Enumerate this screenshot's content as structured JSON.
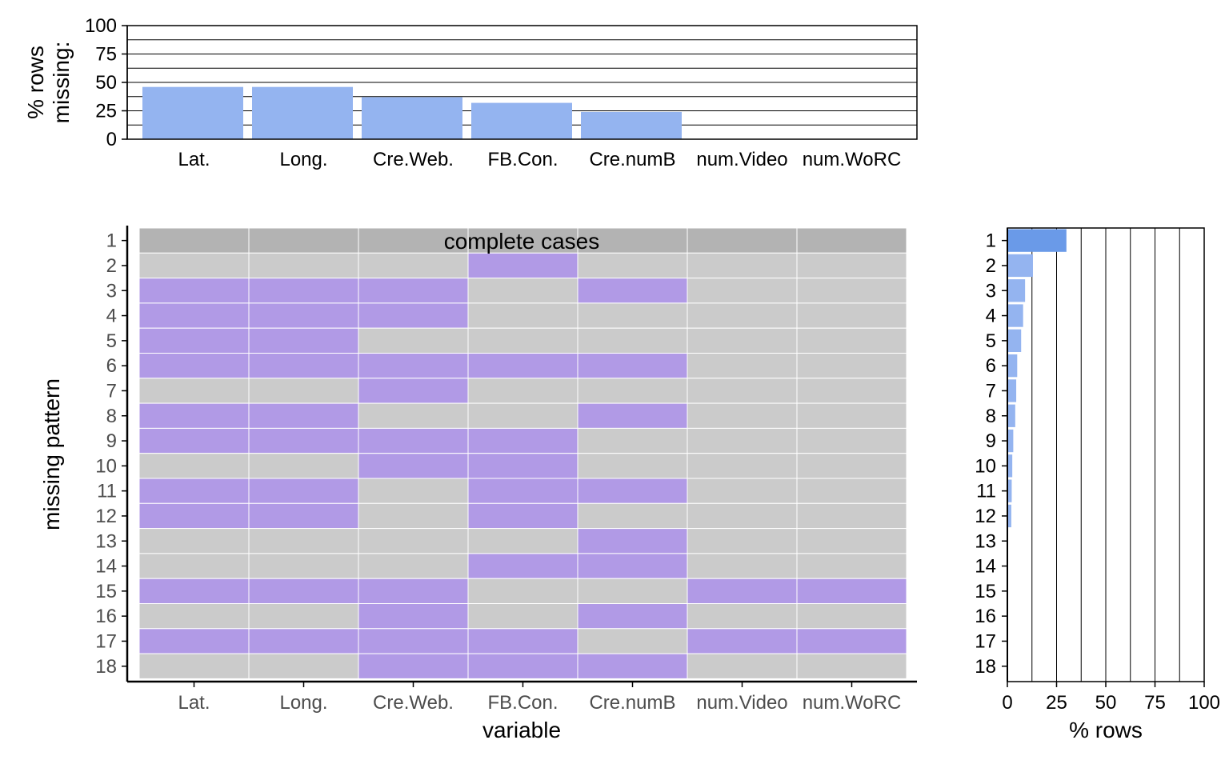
{
  "chart_data": [
    {
      "type": "bar",
      "ylabel": "% rows missing:",
      "ylim": [
        0,
        100
      ],
      "yticks": [
        0,
        25,
        50,
        75,
        100
      ],
      "grid": true,
      "categories": [
        "Lat.",
        "Long.",
        "Cre.Web.",
        "FB.Con.",
        "Cre.numB",
        "num.Video",
        "num.WoRC"
      ],
      "values": [
        46,
        46,
        37,
        32,
        24,
        0,
        0
      ],
      "color": "#94b4f0"
    },
    {
      "type": "heatmap",
      "xlabel": "variable",
      "ylabel": "missing pattern",
      "categories": [
        "Lat.",
        "Long.",
        "Cre.Web.",
        "FB.Con.",
        "Cre.numB",
        "num.Video",
        "num.WoRC"
      ],
      "rows": [
        "1",
        "2",
        "3",
        "4",
        "5",
        "6",
        "7",
        "8",
        "9",
        "10",
        "11",
        "12",
        "13",
        "14",
        "15",
        "16",
        "17",
        "18"
      ],
      "annotation": "complete cases",
      "colors": {
        "missing": "#b19ae6",
        "present": "#cbcbcb",
        "complete": "#b3b3b3"
      },
      "missing": [
        [
          0,
          0,
          0,
          0,
          0,
          0,
          0
        ],
        [
          0,
          0,
          0,
          1,
          0,
          0,
          0
        ],
        [
          1,
          1,
          1,
          0,
          1,
          0,
          0
        ],
        [
          1,
          1,
          1,
          0,
          0,
          0,
          0
        ],
        [
          1,
          1,
          0,
          0,
          0,
          0,
          0
        ],
        [
          1,
          1,
          1,
          1,
          1,
          0,
          0
        ],
        [
          0,
          0,
          1,
          0,
          0,
          0,
          0
        ],
        [
          1,
          1,
          0,
          0,
          1,
          0,
          0
        ],
        [
          1,
          1,
          1,
          1,
          0,
          0,
          0
        ],
        [
          0,
          0,
          1,
          1,
          0,
          0,
          0
        ],
        [
          1,
          1,
          0,
          1,
          1,
          0,
          0
        ],
        [
          1,
          1,
          0,
          1,
          0,
          0,
          0
        ],
        [
          0,
          0,
          0,
          0,
          1,
          0,
          0
        ],
        [
          0,
          0,
          0,
          1,
          1,
          0,
          0
        ],
        [
          1,
          1,
          1,
          0,
          0,
          1,
          1
        ],
        [
          0,
          0,
          1,
          0,
          1,
          0,
          0
        ],
        [
          1,
          1,
          1,
          1,
          0,
          1,
          1
        ],
        [
          0,
          0,
          1,
          1,
          1,
          0,
          0
        ]
      ]
    },
    {
      "type": "bar",
      "orientation": "horizontal",
      "xlabel": "% rows",
      "xlim": [
        0,
        100
      ],
      "xticks": [
        0,
        25,
        50,
        75,
        100
      ],
      "grid": true,
      "categories": [
        "1",
        "2",
        "3",
        "4",
        "5",
        "6",
        "7",
        "8",
        "9",
        "10",
        "11",
        "12",
        "13",
        "14",
        "15",
        "16",
        "17",
        "18"
      ],
      "values": [
        30,
        13,
        9,
        8,
        7,
        5,
        4.5,
        4,
        3,
        2.5,
        2.2,
        2,
        0,
        0,
        0,
        0,
        0,
        0
      ],
      "colors": {
        "first": "#6a9ae8",
        "rest": "#94b4f0"
      }
    }
  ]
}
